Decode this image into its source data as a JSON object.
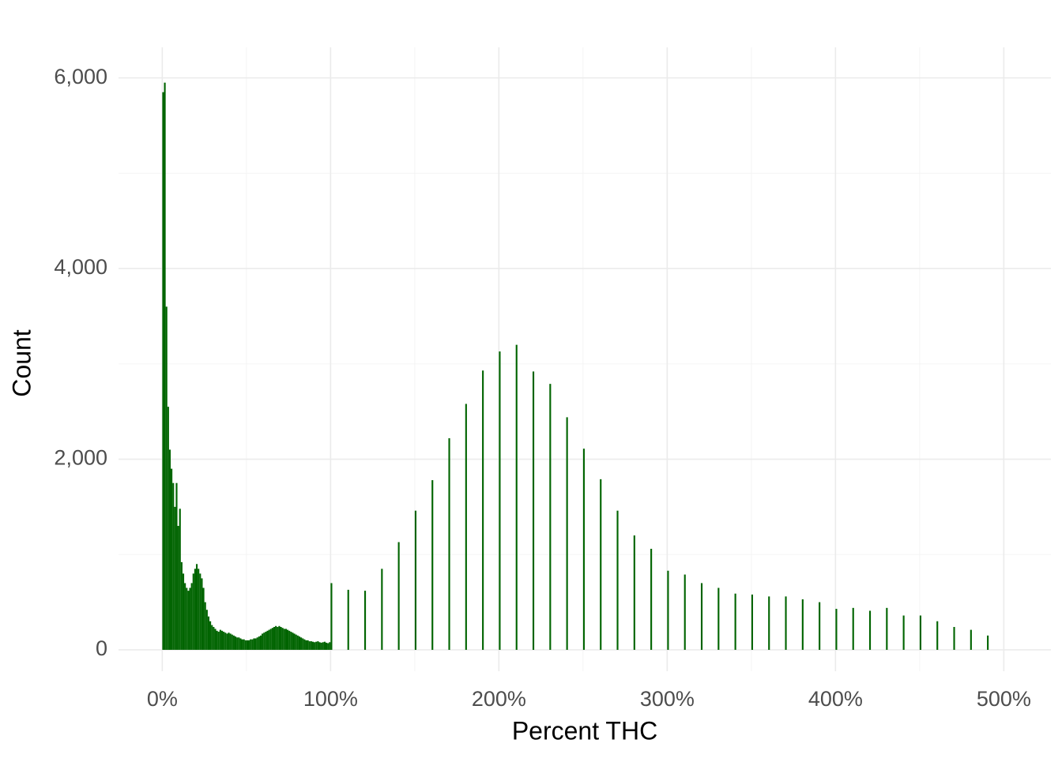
{
  "chart_data": {
    "type": "histogram",
    "x_label": "Percent THC",
    "y_label": "Count",
    "color": "#006400",
    "grid": true,
    "xlim": [
      -26,
      528
    ],
    "ylim": [
      -224,
      6320
    ],
    "xticks": [
      {
        "value": 0,
        "label": "0%"
      },
      {
        "value": 100,
        "label": "100%"
      },
      {
        "value": 200,
        "label": "200%"
      },
      {
        "value": 300,
        "label": "300%"
      },
      {
        "value": 400,
        "label": "400%"
      },
      {
        "value": 500,
        "label": "500%"
      }
    ],
    "x_minor_ticks": [
      50,
      150,
      250,
      350,
      450
    ],
    "yticks": [
      0,
      {
        "value": 2000,
        "label": "2,000"
      },
      {
        "value": 4000,
        "label": "4,000"
      },
      {
        "value": 6000,
        "label": "6,000"
      }
    ],
    "y_minor_ticks": [
      1000,
      3000,
      5000
    ],
    "bins": [
      0,
      1,
      2,
      3,
      4,
      5,
      6,
      7,
      8,
      9,
      10,
      11,
      12,
      13,
      14,
      15,
      16,
      17,
      18,
      19,
      20,
      21,
      22,
      23,
      24,
      25,
      26,
      27,
      28,
      29,
      30,
      31,
      32,
      33,
      34,
      35,
      36,
      37,
      38,
      39,
      40,
      41,
      42,
      43,
      44,
      45,
      46,
      47,
      48,
      49,
      50,
      51,
      52,
      53,
      54,
      55,
      56,
      57,
      58,
      59,
      60,
      61,
      62,
      63,
      64,
      65,
      66,
      67,
      68,
      69,
      70,
      71,
      72,
      73,
      74,
      75,
      76,
      77,
      78,
      79,
      80,
      81,
      82,
      83,
      84,
      85,
      86,
      87,
      88,
      89,
      90,
      91,
      92,
      93,
      94,
      95,
      96,
      97,
      98,
      99,
      100,
      101,
      102,
      103,
      104,
      105,
      106,
      107,
      108,
      109,
      110,
      111,
      112,
      113,
      114,
      115,
      116,
      117,
      118,
      119,
      120,
      121,
      122,
      123,
      124,
      125,
      126,
      127,
      128,
      129,
      130,
      131,
      132,
      133,
      134,
      135,
      136,
      137,
      138,
      139,
      140,
      141,
      142,
      143,
      144,
      145,
      146,
      147,
      148,
      149,
      150,
      151,
      152,
      153,
      154,
      155,
      156,
      157,
      158,
      159,
      160,
      161,
      162,
      163,
      164,
      165,
      166,
      167,
      168,
      169,
      170,
      171,
      172,
      173,
      174,
      175,
      176,
      177,
      178,
      179,
      180,
      181,
      182,
      183,
      184,
      185,
      186,
      187,
      188,
      189,
      190,
      191,
      192,
      193,
      194,
      195,
      196,
      197,
      198,
      199,
      200,
      201,
      202,
      203,
      204,
      205,
      206,
      207,
      208,
      209,
      210,
      211,
      212,
      213,
      214,
      215,
      216,
      217,
      218,
      219,
      220,
      221,
      222,
      223,
      224,
      225,
      226,
      227,
      228,
      229,
      230,
      231,
      232,
      233,
      234,
      235,
      236,
      237,
      238,
      239,
      240,
      241,
      242,
      243,
      244,
      245,
      246,
      247,
      248,
      249,
      250,
      251,
      252,
      253,
      254,
      255,
      256,
      257,
      258,
      259,
      260,
      261,
      262,
      263,
      264,
      265,
      266,
      267,
      268,
      269,
      270,
      271,
      272,
      273,
      274,
      275,
      276,
      277,
      278,
      279,
      280,
      281,
      282,
      283,
      284,
      285,
      286,
      287,
      288,
      289,
      290,
      291,
      292,
      293,
      294,
      295,
      296,
      297,
      298,
      299,
      300,
      301,
      302,
      303,
      304,
      305,
      306,
      307,
      308,
      309,
      310,
      311,
      312,
      313,
      314,
      315,
      316,
      317,
      318,
      319,
      320,
      321,
      322,
      323,
      324,
      325,
      326,
      327,
      328,
      329,
      330,
      331,
      332,
      333,
      334,
      335,
      336,
      337,
      338,
      339,
      340,
      341,
      342,
      343,
      344,
      345,
      346,
      347,
      348,
      349,
      350,
      351,
      352,
      353,
      354,
      355,
      356,
      357,
      358,
      359,
      360,
      361,
      362,
      363,
      364,
      365,
      366,
      367,
      368,
      369,
      370,
      371,
      372,
      373,
      374,
      375,
      376,
      377,
      378,
      379,
      380,
      381,
      382,
      383,
      384,
      385,
      386,
      387,
      388,
      389,
      390,
      391,
      392,
      393,
      394,
      395,
      396,
      397,
      398,
      399,
      400,
      401,
      402,
      403,
      404,
      405,
      406,
      407,
      408,
      409,
      410,
      411,
      412,
      413,
      414,
      415,
      416,
      417,
      418,
      419,
      420,
      421,
      422,
      423,
      424,
      425,
      426,
      427,
      428,
      429,
      430,
      431,
      432,
      433,
      434,
      435,
      436,
      437,
      438,
      439,
      440,
      441,
      442,
      443,
      444,
      445,
      446,
      447,
      448,
      449,
      450,
      451,
      452,
      453,
      454,
      455,
      456,
      457,
      458,
      459,
      460,
      461,
      462,
      463,
      464,
      465,
      466,
      467,
      468,
      469,
      470,
      471,
      472,
      473,
      474,
      475,
      476,
      477,
      478,
      479,
      480,
      481,
      482,
      483,
      484,
      485,
      486,
      487,
      488,
      489,
      490,
      491
    ],
    "values": [
      5850,
      5950,
      3600,
      2550,
      2100,
      1900,
      1750,
      1500,
      1750,
      1300,
      1480,
      920,
      800,
      700,
      650,
      620,
      650,
      700,
      800,
      850,
      900,
      850,
      800,
      750,
      650,
      500,
      420,
      350,
      300,
      260,
      240,
      220,
      200,
      190,
      210,
      200,
      190,
      180,
      170,
      180,
      170,
      160,
      150,
      140,
      130,
      130,
      120,
      110,
      110,
      100,
      100,
      100,
      110,
      110,
      120,
      120,
      130,
      140,
      150,
      170,
      180,
      190,
      200,
      210,
      220,
      230,
      240,
      250,
      240,
      250,
      240,
      230,
      220,
      220,
      210,
      200,
      190,
      180,
      170,
      160,
      150,
      140,
      130,
      120,
      110,
      100,
      100,
      90,
      90,
      85,
      80,
      85,
      90,
      80,
      75,
      80,
      85,
      75,
      70,
      80,
      700,
      0,
      0,
      0,
      0,
      0,
      0,
      0,
      0,
      0,
      630,
      0,
      0,
      0,
      0,
      0,
      0,
      0,
      0,
      0,
      620,
      0,
      0,
      0,
      0,
      0,
      0,
      0,
      0,
      0,
      850,
      0,
      0,
      0,
      0,
      0,
      0,
      0,
      0,
      0,
      1130,
      0,
      0,
      0,
      0,
      0,
      0,
      0,
      0,
      0,
      1460,
      0,
      0,
      0,
      0,
      0,
      0,
      0,
      0,
      0,
      1780,
      0,
      0,
      0,
      0,
      0,
      0,
      0,
      0,
      0,
      2220,
      0,
      0,
      0,
      0,
      0,
      0,
      0,
      0,
      0,
      2580,
      0,
      0,
      0,
      0,
      0,
      0,
      0,
      0,
      0,
      2930,
      0,
      0,
      0,
      0,
      0,
      0,
      0,
      0,
      0,
      3130,
      0,
      0,
      0,
      0,
      0,
      0,
      0,
      0,
      0,
      3200,
      0,
      0,
      0,
      0,
      0,
      0,
      0,
      0,
      0,
      2920,
      0,
      0,
      0,
      0,
      0,
      0,
      0,
      0,
      0,
      2790,
      0,
      0,
      0,
      0,
      0,
      0,
      0,
      0,
      0,
      2440,
      0,
      0,
      0,
      0,
      0,
      0,
      0,
      0,
      0,
      2110,
      0,
      0,
      0,
      0,
      0,
      0,
      0,
      0,
      0,
      1790,
      0,
      0,
      0,
      0,
      0,
      0,
      0,
      0,
      0,
      1460,
      0,
      0,
      0,
      0,
      0,
      0,
      0,
      0,
      0,
      1200,
      0,
      0,
      0,
      0,
      0,
      0,
      0,
      0,
      0,
      1060,
      0,
      0,
      0,
      0,
      0,
      0,
      0,
      0,
      0,
      830,
      0,
      0,
      0,
      0,
      0,
      0,
      0,
      0,
      0,
      790,
      0,
      0,
      0,
      0,
      0,
      0,
      0,
      0,
      0,
      700,
      0,
      0,
      0,
      0,
      0,
      0,
      0,
      0,
      0,
      650,
      0,
      0,
      0,
      0,
      0,
      0,
      0,
      0,
      0,
      590,
      0,
      0,
      0,
      0,
      0,
      0,
      0,
      0,
      0,
      580,
      0,
      0,
      0,
      0,
      0,
      0,
      0,
      0,
      0,
      560,
      0,
      0,
      0,
      0,
      0,
      0,
      0,
      0,
      0,
      560,
      0,
      0,
      0,
      0,
      0,
      0,
      0,
      0,
      0,
      530,
      0,
      0,
      0,
      0,
      0,
      0,
      0,
      0,
      0,
      500,
      0,
      0,
      0,
      0,
      0,
      0,
      0,
      0,
      0,
      430,
      0,
      0,
      0,
      0,
      0,
      0,
      0,
      0,
      0,
      440,
      0,
      0,
      0,
      0,
      0,
      0,
      0,
      0,
      0,
      410,
      0,
      0,
      0,
      0,
      0,
      0,
      0,
      0,
      0,
      440,
      0,
      0,
      0,
      0,
      0,
      0,
      0,
      0,
      0,
      360,
      0,
      0,
      0,
      0,
      0,
      0,
      0,
      0,
      0,
      360,
      0,
      0,
      0,
      0,
      0,
      0,
      0,
      0,
      0,
      300,
      0,
      0,
      0,
      0,
      0,
      0,
      0,
      0,
      0,
      240,
      0,
      0,
      0,
      0,
      0,
      0,
      0,
      0,
      0,
      210,
      0,
      0,
      0,
      0,
      0,
      0,
      0,
      0,
      0,
      150
    ]
  }
}
